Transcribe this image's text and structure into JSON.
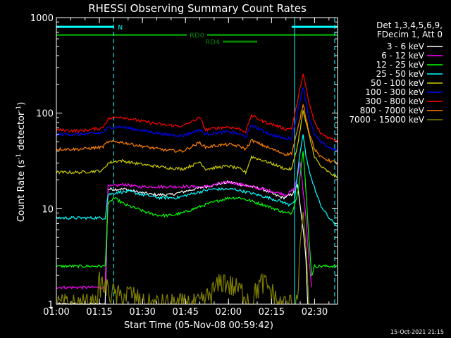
{
  "chart_data": {
    "type": "line",
    "title": "RHESSI Observing Summary Count Rates",
    "xlabel": "Start Time (05-Nov-08 00:59:42)",
    "ylabel_main": "Count Rate (s",
    "ylabel_sup1": "-1",
    "ylabel_mid": " detector",
    "ylabel_sup2": "-1",
    "ylabel_end": ")",
    "yscale": "log",
    "xlim_min": [
      0,
      98
    ],
    "ylim": [
      1,
      1000
    ],
    "x_ticks": [
      {
        "min": 0,
        "label": "01:00"
      },
      {
        "min": 15,
        "label": "01:15"
      },
      {
        "min": 30,
        "label": "01:30"
      },
      {
        "min": 45,
        "label": "01:45"
      },
      {
        "min": 60,
        "label": "02:00"
      },
      {
        "min": 75,
        "label": "02:15"
      },
      {
        "min": 90,
        "label": "02:30"
      }
    ],
    "y_ticks": [
      {
        "value": 1,
        "label": "1"
      },
      {
        "value": 10,
        "label": "10"
      },
      {
        "value": 100,
        "label": "100"
      },
      {
        "value": 1000,
        "label": "1000"
      }
    ],
    "legend": {
      "header1": "Det 1,3,4,5,6,9,",
      "header2": "FDecim 1, Att 0",
      "placement": "right"
    },
    "flags": [
      {
        "label": "N",
        "color": "#00ffff",
        "start": 0,
        "end": 20,
        "y": 800
      },
      {
        "label": "N",
        "color": "#00ffff",
        "start": 82,
        "end": 98,
        "y": 800
      },
      {
        "label": "RD0",
        "color": "#008000",
        "start": 0,
        "end": 98,
        "y": 660
      },
      {
        "label": "RD4",
        "color": "#008000",
        "start": 58,
        "end": 70,
        "y": 560
      }
    ],
    "vlines": [
      {
        "x": 20,
        "color": "#00ffff",
        "style": "dashed"
      },
      {
        "x": 83,
        "color": "#00ffff",
        "style": "solid"
      },
      {
        "x": 97,
        "color": "#00ffff",
        "style": "dashed"
      }
    ],
    "series": [
      {
        "name": "3 - 6 keV",
        "color": "#ffffff",
        "x": [
          0,
          17,
          18,
          24,
          28,
          34,
          40,
          44,
          48,
          52,
          56,
          60,
          64,
          68,
          72,
          76,
          79,
          82,
          84,
          86,
          87,
          87.6
        ],
        "y": [
          1,
          1,
          16,
          16,
          15,
          14,
          14,
          15,
          16,
          17,
          18,
          19,
          18,
          17,
          16,
          14,
          13,
          14,
          18,
          6,
          3,
          1
        ]
      },
      {
        "name": "6 - 12 keV",
        "color": "#ff00ff",
        "x": [
          0,
          17,
          18,
          24,
          28,
          34,
          40,
          44,
          48,
          52,
          56,
          60,
          64,
          68,
          72,
          76,
          80,
          83,
          85,
          87,
          88,
          89
        ],
        "y": [
          1.5,
          1.5,
          17,
          18,
          17,
          17,
          17,
          17,
          17,
          17,
          18,
          19,
          18,
          17,
          16,
          15,
          14,
          16,
          30,
          8,
          3,
          1.5
        ]
      },
      {
        "name": "12 - 25 keV",
        "color": "#00ff00",
        "x": [
          0,
          17,
          18,
          20,
          24,
          28,
          32,
          36,
          40,
          44,
          48,
          52,
          56,
          60,
          64,
          68,
          72,
          76,
          80,
          82,
          84,
          86,
          87,
          88,
          89,
          90,
          98
        ],
        "y": [
          2.5,
          2.5,
          11,
          13,
          11,
          10,
          9,
          8.5,
          8.5,
          9,
          10,
          11,
          12,
          13,
          13,
          12,
          11,
          10,
          9,
          9,
          14,
          40,
          15,
          5,
          2,
          2.5,
          2.5
        ]
      },
      {
        "name": "25 - 50 keV",
        "color": "#00ffff",
        "x": [
          0,
          8,
          17,
          18,
          22,
          26,
          30,
          36,
          42,
          46,
          50,
          54,
          58,
          62,
          66,
          70,
          74,
          78,
          81,
          83,
          85,
          86,
          87,
          89,
          92,
          95,
          98
        ],
        "y": [
          8,
          8,
          8,
          14,
          15,
          15,
          14,
          13,
          13,
          14,
          15,
          16,
          16,
          16,
          15,
          14,
          13,
          12,
          11,
          12,
          40,
          60,
          35,
          20,
          11,
          8,
          6.5
        ]
      },
      {
        "name": "50 - 100 keV",
        "color": "#cccc00",
        "x": [
          0,
          8,
          16,
          18,
          22,
          30,
          38,
          44,
          48,
          50,
          52,
          56,
          60,
          64,
          66,
          68,
          72,
          76,
          80,
          82,
          84,
          86,
          88,
          90,
          92,
          95,
          98
        ],
        "y": [
          24,
          24,
          25,
          30,
          32,
          29,
          27,
          26,
          29,
          31,
          26,
          27,
          28,
          26,
          24,
          35,
          32,
          29,
          26,
          26,
          45,
          105,
          60,
          35,
          28,
          24,
          21
        ]
      },
      {
        "name": "100 - 300 keV",
        "color": "#0000ff",
        "x": [
          0,
          8,
          16,
          18,
          22,
          30,
          38,
          44,
          48,
          50,
          52,
          56,
          60,
          64,
          66,
          68,
          72,
          76,
          80,
          82,
          84,
          86,
          88,
          90,
          92,
          95,
          98
        ],
        "y": [
          60,
          60,
          62,
          70,
          72,
          66,
          60,
          58,
          64,
          67,
          60,
          62,
          64,
          60,
          56,
          75,
          65,
          58,
          54,
          55,
          100,
          190,
          90,
          60,
          50,
          44,
          40
        ]
      },
      {
        "name": "300 - 800 keV",
        "color": "#ff0000",
        "x": [
          0,
          8,
          16,
          18,
          22,
          30,
          38,
          44,
          48,
          50,
          52,
          56,
          60,
          64,
          66,
          68,
          72,
          76,
          80,
          82,
          84,
          86,
          88,
          90,
          92,
          95,
          98
        ],
        "y": [
          67,
          65,
          70,
          87,
          92,
          82,
          75,
          73,
          84,
          90,
          67,
          70,
          72,
          68,
          64,
          95,
          82,
          75,
          68,
          70,
          130,
          260,
          130,
          80,
          62,
          55,
          52
        ]
      },
      {
        "name": "800 - 7000 keV",
        "color": "#ff8000",
        "x": [
          0,
          8,
          16,
          18,
          22,
          30,
          38,
          44,
          48,
          50,
          52,
          56,
          60,
          64,
          66,
          68,
          72,
          76,
          80,
          82,
          84,
          86,
          88,
          90,
          92,
          95,
          98
        ],
        "y": [
          42,
          42,
          44,
          50,
          50,
          45,
          41,
          40,
          46,
          49,
          44,
          46,
          47,
          45,
          42,
          52,
          46,
          41,
          37,
          38,
          65,
          125,
          65,
          42,
          35,
          32,
          30
        ]
      },
      {
        "name": "7000 - 15000 keV",
        "color": "#808000",
        "x": [
          0,
          14,
          15,
          18,
          22,
          26,
          30,
          36,
          42,
          46,
          48,
          50,
          54,
          58,
          62,
          66,
          68,
          70,
          72,
          74,
          76,
          78,
          80,
          82,
          84,
          85,
          86,
          87,
          88
        ],
        "y": [
          1,
          1,
          1.7,
          1.4,
          1.2,
          1.3,
          1,
          1,
          1,
          1,
          1,
          1,
          1.3,
          1.8,
          1.5,
          1.3,
          1,
          1.5,
          1.7,
          1.5,
          1.2,
          1,
          1,
          1,
          1.2,
          4.5,
          9,
          4,
          1
        ]
      }
    ]
  },
  "footer": {
    "datestamp": "15-Oct-2021 21:15"
  },
  "colors": {
    "background": "#000000",
    "axis": "#ffffff"
  }
}
